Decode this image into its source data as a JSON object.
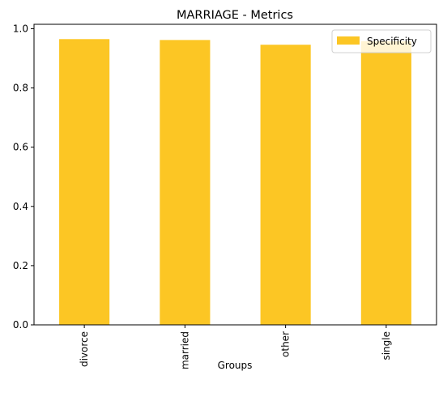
{
  "chart_data": {
    "type": "bar",
    "title": "MARRIAGE - Metrics",
    "xlabel": "Groups",
    "ylabel": "",
    "categories": [
      "divorce",
      "married",
      "other",
      "single"
    ],
    "series": [
      {
        "name": "Specificity",
        "values": [
          0.965,
          0.962,
          0.946,
          0.958
        ],
        "color": "#fcc624"
      }
    ],
    "ylim": [
      0,
      1.015
    ],
    "yticks": [
      0.0,
      0.2,
      0.4,
      0.6,
      0.8,
      1.0
    ],
    "ytick_labels": [
      "0.0",
      "0.2",
      "0.4",
      "0.6",
      "0.8",
      "1.0"
    ],
    "legend_position": "top-right",
    "grid": false
  }
}
